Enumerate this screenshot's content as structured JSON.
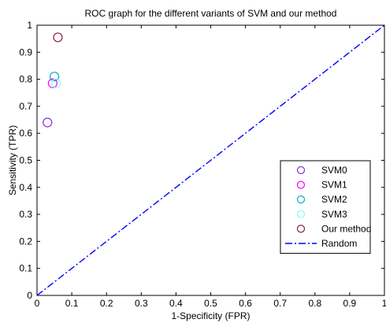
{
  "chart_data": {
    "type": "scatter",
    "title": "ROC graph for the different variants of SVM and our method",
    "xlabel": "1-Specificity (FPR)",
    "ylabel": "Sensitivity (TPR)",
    "xlim": [
      0,
      1
    ],
    "ylim": [
      0,
      1
    ],
    "xticks": [
      "0",
      "0.1",
      "0.2",
      "0.3",
      "0.4",
      "0.5",
      "0.6",
      "0.7",
      "0.8",
      "0.9",
      "1"
    ],
    "yticks": [
      "0",
      "0.1",
      "0.2",
      "0.3",
      "0.4",
      "0.5",
      "0.6",
      "0.7",
      "0.8",
      "0.9",
      "1"
    ],
    "grid": false,
    "legend_position": "lower-right",
    "series": [
      {
        "name": "SVM0",
        "color": "#8a2be2",
        "marker": "circle",
        "points": [
          {
            "x": 0.03,
            "y": 0.64
          }
        ]
      },
      {
        "name": "SVM1",
        "color": "#ff00ff",
        "marker": "circle",
        "points": [
          {
            "x": 0.045,
            "y": 0.785
          }
        ]
      },
      {
        "name": "SVM2",
        "color": "#00a6c8",
        "marker": "circle",
        "points": [
          {
            "x": 0.05,
            "y": 0.81
          }
        ]
      },
      {
        "name": "SVM3",
        "color": "#7fffff",
        "marker": "circle",
        "points": [
          {
            "x": 0.055,
            "y": 0.785
          }
        ]
      },
      {
        "name": "Our method",
        "color": "#8b1a3a",
        "marker": "circle",
        "points": [
          {
            "x": 0.06,
            "y": 0.955
          }
        ]
      }
    ],
    "reference_line": {
      "name": "Random",
      "color": "#0000ff",
      "style": "dash-dot",
      "points": [
        {
          "x": 0,
          "y": 0
        },
        {
          "x": 1,
          "y": 1
        }
      ]
    }
  }
}
